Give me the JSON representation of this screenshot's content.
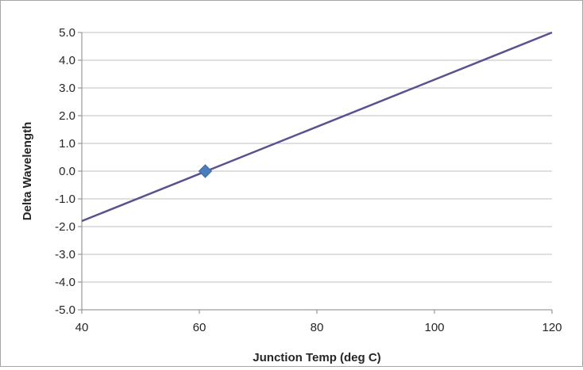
{
  "chart_data": {
    "type": "scatter",
    "title": "",
    "xlabel": "Junction Temp (deg C)",
    "ylabel": "Delta Wavelength",
    "xlim": [
      40,
      120
    ],
    "ylim": [
      -5.0,
      5.0
    ],
    "x_ticks": [
      "40",
      "60",
      "80",
      "100",
      "120"
    ],
    "y_ticks": [
      "5.0",
      "4.0",
      "3.0",
      "2.0",
      "1.0",
      "0.0",
      "-1.0",
      "-2.0",
      "-3.0",
      "-4.0",
      "-5.0"
    ],
    "grid": "horizontal",
    "legend": "none",
    "series": [
      {
        "type": "line",
        "x": [
          40,
          120
        ],
        "y": [
          -1.8,
          5.0
        ],
        "color": "#5e4f8f"
      },
      {
        "type": "scatter",
        "marker": "diamond",
        "x": [
          61
        ],
        "y": [
          0.0
        ],
        "color": "#4a7ebb"
      }
    ]
  }
}
